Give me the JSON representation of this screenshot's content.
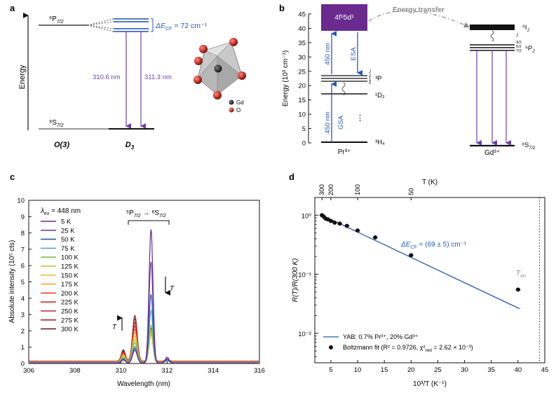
{
  "panel_labels": [
    "a",
    "b",
    "c",
    "d"
  ],
  "panel_a": {
    "y_label": "Energy",
    "upper_level": "⁶P",
    "upper_level_sub": "7/2",
    "lower_level": "⁸S",
    "lower_level_sub": "7/2",
    "delta_prefix": "ΔE",
    "delta_sub": "CF",
    "delta_value": " = 72 cm⁻¹",
    "transition_1": "310.6 nm",
    "transition_2": "311.3 nm",
    "group_left": "O(3)",
    "group_right": "D",
    "group_right_sub": "3",
    "legend_gd": "Gd",
    "legend_o": "O",
    "colors": {
      "level": "#1f4fae",
      "arrow": "#6a3fa8",
      "text_blue": "#2458b8",
      "gd": "#222222",
      "o": "#c4322a"
    }
  },
  "panel_b": {
    "y_label": "Energy (10³ cm⁻¹)",
    "y_ticks": [
      "0",
      "5",
      "10",
      "15",
      "20",
      "25",
      "30",
      "35",
      "40",
      "45"
    ],
    "band_label": "4f¹5d¹",
    "energy_transfer": "Energy transfer",
    "esa_nm": "450 nm",
    "esa": "ESA",
    "gsa_nm": "450 nm",
    "gsa": "GSA",
    "pr_levels": [
      "³H₄",
      "¹D₂",
      "³P",
      "J"
    ],
    "pr_j_values": [
      "2",
      "1",
      "0"
    ],
    "pr_ion": "Pr³⁺",
    "gd_levels": [
      "⁶I",
      "J",
      "J",
      "⁶P",
      "J",
      "⁸S",
      "7/2"
    ],
    "gd_j_values": [
      "3/2",
      "5/2",
      "7/2"
    ],
    "gd_ion": "Gd³⁺",
    "dots": "⋮",
    "colors": {
      "band": "#6a2a8e",
      "arrow_blue": "#2458b8",
      "arrow_purple": "#6a3fa8"
    }
  },
  "chart_data": [
    {
      "panel": "c",
      "type": "line",
      "xlabel": "Wavelength (nm)",
      "ylabel": "Absolute intensity (10⁵ cts)",
      "xlim": [
        306,
        316
      ],
      "ylim": [
        0,
        10
      ],
      "x_ticks": [
        "306",
        "308",
        "310",
        "312",
        "314",
        "316"
      ],
      "y_ticks": [
        "0",
        "1",
        "2",
        "3",
        "4",
        "5",
        "6",
        "7",
        "8",
        "9",
        "10"
      ],
      "legend_title": "λ",
      "legend_title_sub": "ex",
      "legend_title_value": " = 448 nm",
      "annotation": "⁶P",
      "annotation_sub": "7/2",
      "annotation_arrow": " → ⁸S",
      "annotation_sub2": "7/2",
      "arrow_label": "T",
      "series": [
        {
          "name": "5 K",
          "color": "#6a2a8e",
          "p1": 0.8,
          "p2": 8.2,
          "base": 0.02
        },
        {
          "name": "25 K",
          "color": "#6b48a8",
          "p1": 0.8,
          "p2": 6.2,
          "base": 0.03
        },
        {
          "name": "50 K",
          "color": "#2a5bb3",
          "p1": 0.9,
          "p2": 4.2,
          "base": 0.04
        },
        {
          "name": "75 K",
          "color": "#4aa9dc",
          "p1": 1.0,
          "p2": 3.2,
          "base": 0.05
        },
        {
          "name": "100 K",
          "color": "#7ac043",
          "p1": 1.2,
          "p2": 2.3,
          "base": 0.06
        },
        {
          "name": "125 K",
          "color": "#a5c93a",
          "p1": 1.4,
          "p2": 2.0,
          "base": 0.07
        },
        {
          "name": "150 K",
          "color": "#e7c531",
          "p1": 1.6,
          "p2": 1.8,
          "base": 0.08
        },
        {
          "name": "175 K",
          "color": "#f2a63a",
          "p1": 1.8,
          "p2": 1.7,
          "base": 0.09
        },
        {
          "name": "200 K",
          "color": "#e8422d",
          "p1": 2.0,
          "p2": 1.7,
          "base": 0.1
        },
        {
          "name": "225 K",
          "color": "#d12d2a",
          "p1": 2.2,
          "p2": 1.8,
          "base": 0.11
        },
        {
          "name": "250 K",
          "color": "#b42a2a",
          "p1": 2.4,
          "p2": 1.8,
          "base": 0.12
        },
        {
          "name": "275 K",
          "color": "#93302c",
          "p1": 2.6,
          "p2": 1.9,
          "base": 0.13
        },
        {
          "name": "300 K",
          "color": "#6e1e1e",
          "p1": 2.8,
          "p2": 2.0,
          "base": 0.14
        }
      ]
    },
    {
      "panel": "d",
      "type": "scatter",
      "xlabel": "10³/T (K⁻¹)",
      "ylabel": "R(T)/R(300 K)",
      "top_xlabel": "T (K)",
      "xlim": [
        2,
        45
      ],
      "ylim_log10": [
        -2.5,
        0.3
      ],
      "x_ticks": [
        "5",
        "10",
        "15",
        "20",
        "25",
        "30",
        "35",
        "40",
        "45"
      ],
      "top_ticks": [
        300,
        200,
        100,
        50
      ],
      "top_tick_labels": [
        "300",
        "200",
        "100",
        "50"
      ],
      "y_ticks": [
        "10⁰",
        "10⁻¹",
        "10⁻²"
      ],
      "y_tick_values": [
        1,
        0.1,
        0.01
      ],
      "annotation": "ΔE",
      "annotation_sub": "CF",
      "annotation_value": " = (69 ± 5) cm⁻¹",
      "t_on": "T",
      "t_on_sub": "on",
      "t_on_x": 44,
      "fit": {
        "x1": 3.33,
        "y1": 1.0,
        "x2": 40.3,
        "y2": 0.026,
        "color": "#2458b8"
      },
      "legend": [
        "YAB: 0.7% Pr³⁺, 20% Gd³⁺",
        "Boltzmann fit (R² = 0.9726, χ²",
        "red",
        " = 2.62 × 10⁻³)"
      ],
      "points": [
        {
          "x": 3.33,
          "y": 1.0
        },
        {
          "x": 3.64,
          "y": 0.95
        },
        {
          "x": 4.0,
          "y": 0.88
        },
        {
          "x": 4.44,
          "y": 0.85
        },
        {
          "x": 5.0,
          "y": 0.8
        },
        {
          "x": 5.71,
          "y": 0.75
        },
        {
          "x": 6.67,
          "y": 0.72
        },
        {
          "x": 8.0,
          "y": 0.66
        },
        {
          "x": 10.0,
          "y": 0.55
        },
        {
          "x": 13.3,
          "y": 0.42
        },
        {
          "x": 20.0,
          "y": 0.21
        },
        {
          "x": 40.0,
          "y": 0.055
        }
      ]
    }
  ]
}
